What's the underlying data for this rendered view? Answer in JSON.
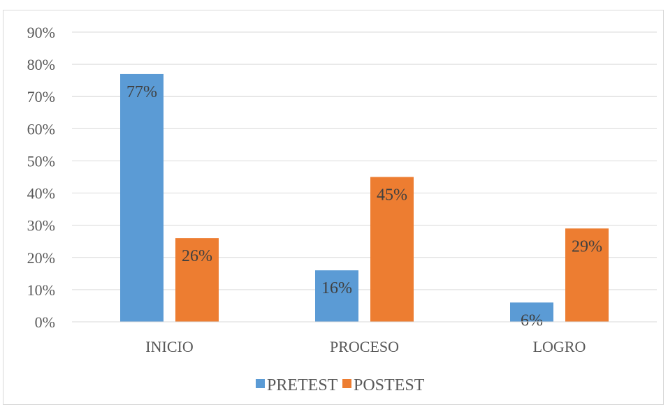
{
  "chart_data": {
    "type": "bar",
    "title": "",
    "xlabel": "",
    "ylabel": "",
    "categories": [
      "INICIO",
      "PROCESO",
      "LOGRO"
    ],
    "series": [
      {
        "name": "PRETEST",
        "values": [
          77,
          16,
          6
        ],
        "labels": [
          "77%",
          "16%",
          "6%"
        ],
        "color": "#5b9bd5"
      },
      {
        "name": "POSTEST",
        "values": [
          26,
          45,
          29
        ],
        "labels": [
          "26%",
          "45%",
          "29%"
        ],
        "color": "#ed7d31"
      }
    ],
    "ylim": [
      0,
      90
    ],
    "yticks": [
      0,
      10,
      20,
      30,
      40,
      50,
      60,
      70,
      80,
      90
    ],
    "ytick_labels": [
      "0%",
      "10%",
      "20%",
      "30%",
      "40%",
      "50%",
      "60%",
      "70%",
      "80%",
      "90%"
    ],
    "grid": true,
    "legend_position": "bottom"
  }
}
